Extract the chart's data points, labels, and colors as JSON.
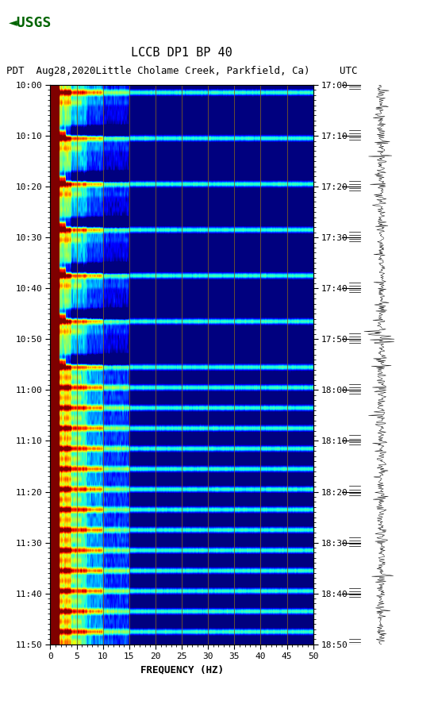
{
  "title_line1": "LCCB DP1 BP 40",
  "title_line2": "PDT  Aug28,2020Little Cholame Creek, Parkfield, Ca)     UTC",
  "xlabel": "FREQUENCY (HZ)",
  "freq_min": 0,
  "freq_max": 50,
  "freq_ticks": [
    0,
    5,
    10,
    15,
    20,
    25,
    30,
    35,
    40,
    45,
    50
  ],
  "time_labels_left": [
    "10:00",
    "10:10",
    "10:20",
    "10:30",
    "10:40",
    "10:50",
    "11:00",
    "11:10",
    "11:20",
    "11:30",
    "11:40",
    "11:50"
  ],
  "time_labels_right": [
    "17:00",
    "17:10",
    "17:20",
    "17:30",
    "17:40",
    "17:50",
    "18:00",
    "18:10",
    "18:20",
    "18:30",
    "18:40",
    "18:50"
  ],
  "n_time_steps": 110,
  "n_freq_bins": 500,
  "fig_bg": "#ffffff",
  "colormap": "jet",
  "vmin": -3.0,
  "vmax": 5.0,
  "vertical_grid_lines": [
    5,
    10,
    15,
    20,
    25,
    30,
    35,
    40,
    45
  ],
  "vertical_grid_color": "#806020",
  "title_fontsize": 11,
  "subtitle_fontsize": 9,
  "tick_fontsize": 8,
  "label_fontsize": 9,
  "usgs_color": "#006400"
}
